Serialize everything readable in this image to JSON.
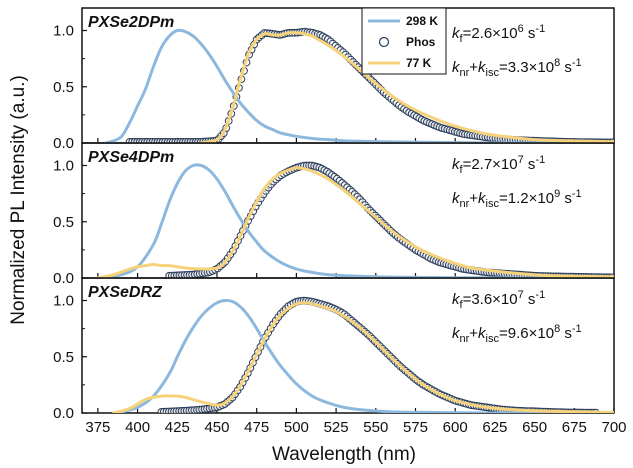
{
  "chart_data": {
    "type": "line",
    "ylabel": "Normalized PL Intensity (a.u.)",
    "xlabel": "Wavelength (nm)",
    "xlim": [
      365,
      700
    ],
    "x_ticks": [
      375,
      400,
      425,
      450,
      475,
      500,
      525,
      550,
      575,
      600,
      625,
      650,
      675,
      700
    ],
    "legend": {
      "placement": "top-center",
      "entries": [
        {
          "key": "rt",
          "label": "298 K",
          "color": "#8db8dd",
          "style": "line"
        },
        {
          "key": "phos",
          "label": "Phos",
          "color": "#2b3d5a",
          "style": "circle"
        },
        {
          "key": "lt",
          "label": "77 K",
          "color": "#f6d37a",
          "style": "line"
        }
      ]
    },
    "panels": [
      {
        "title": "PXSe2DPm",
        "ylim": [
          0,
          1.2
        ],
        "y_ticks": [
          "0.0",
          "0.5",
          "1.0"
        ],
        "annotations": [
          {
            "parts": [
              [
                "k",
                "i"
              ],
              [
                "f",
                "sub"
              ],
              [
                "=2.6×10",
                ""
              ],
              [
                "6",
                "sup"
              ],
              [
                " s",
                ""
              ],
              [
                "-1",
                "sup"
              ]
            ]
          },
          {
            "parts": [
              [
                "k",
                "i"
              ],
              [
                "nr",
                "sub"
              ],
              [
                "+",
                ""
              ],
              [
                "k",
                "i"
              ],
              [
                "isc",
                "sub"
              ],
              [
                "=3.3×10",
                ""
              ],
              [
                "8",
                "sup"
              ],
              [
                " s",
                ""
              ],
              [
                "-1",
                "sup"
              ]
            ]
          }
        ],
        "series": [
          {
            "key": "rt",
            "x": [
              380,
              385,
              390,
              395,
              400,
              405,
              410,
              415,
              420,
              425,
              430,
              435,
              440,
              445,
              450,
              455,
              460,
              465,
              470,
              475,
              480,
              485,
              490,
              500,
              510,
              520,
              530,
              540,
              560,
              580,
              600,
              640,
              690
            ],
            "y": [
              0.0,
              0.02,
              0.06,
              0.18,
              0.33,
              0.48,
              0.68,
              0.85,
              0.95,
              1.0,
              0.99,
              0.95,
              0.88,
              0.79,
              0.68,
              0.56,
              0.45,
              0.35,
              0.27,
              0.2,
              0.15,
              0.12,
              0.09,
              0.06,
              0.04,
              0.03,
              0.02,
              0.015,
              0.01,
              0.006,
              0.004,
              0.0,
              0.0
            ]
          },
          {
            "key": "phos",
            "x": [
              395,
              420,
              440,
              450,
              455,
              460,
              465,
              470,
              475,
              480,
              485,
              490,
              495,
              500,
              505,
              510,
              515,
              520,
              525,
              530,
              535,
              540,
              545,
              550,
              555,
              560,
              565,
              570,
              575,
              580,
              585,
              590,
              595,
              600,
              605,
              610,
              615,
              620,
              625,
              630,
              640,
              650,
              660,
              670,
              680,
              690,
              700
            ],
            "y": [
              0.01,
              0.01,
              0.01,
              0.02,
              0.1,
              0.3,
              0.55,
              0.78,
              0.92,
              0.98,
              0.97,
              0.96,
              0.98,
              0.98,
              0.99,
              0.98,
              0.96,
              0.92,
              0.86,
              0.8,
              0.73,
              0.66,
              0.59,
              0.52,
              0.45,
              0.39,
              0.33,
              0.28,
              0.24,
              0.2,
              0.17,
              0.14,
              0.12,
              0.1,
              0.08,
              0.07,
              0.06,
              0.05,
              0.04,
              0.035,
              0.025,
              0.02,
              0.015,
              0.01,
              0.008,
              0.006,
              0.005
            ]
          },
          {
            "key": "lt",
            "x": [
              440,
              450,
              455,
              460,
              465,
              470,
              475,
              480,
              485,
              490,
              495,
              500,
              505,
              510,
              515,
              520,
              530,
              540,
              550,
              560,
              570,
              580,
              590,
              600,
              610,
              620,
              630,
              650,
              670,
              700
            ],
            "y": [
              0.0,
              0.03,
              0.12,
              0.32,
              0.58,
              0.8,
              0.92,
              0.97,
              0.96,
              0.96,
              0.98,
              0.98,
              0.97,
              0.95,
              0.91,
              0.87,
              0.77,
              0.65,
              0.53,
              0.42,
              0.33,
              0.26,
              0.2,
              0.15,
              0.11,
              0.08,
              0.06,
              0.03,
              0.02,
              0.01
            ]
          }
        ]
      },
      {
        "title": "PXSe4DPm",
        "ylim": [
          0,
          1.2
        ],
        "y_ticks": [
          "0.0",
          "0.5",
          "1.0"
        ],
        "annotations": [
          {
            "parts": [
              [
                "k",
                "i"
              ],
              [
                "f",
                "sub"
              ],
              [
                "=2.7×10",
                ""
              ],
              [
                "7",
                "sup"
              ],
              [
                " s",
                ""
              ],
              [
                "-1",
                "sup"
              ]
            ]
          },
          {
            "parts": [
              [
                "k",
                "i"
              ],
              [
                "nr",
                "sub"
              ],
              [
                "+",
                ""
              ],
              [
                "k",
                "i"
              ],
              [
                "isc",
                "sub"
              ],
              [
                "=1.2×10",
                ""
              ],
              [
                "9",
                "sup"
              ],
              [
                " s",
                ""
              ],
              [
                "-1",
                "sup"
              ]
            ]
          }
        ],
        "series": [
          {
            "key": "rt",
            "x": [
              380,
              390,
              400,
              410,
              415,
              420,
              425,
              430,
              435,
              440,
              445,
              450,
              455,
              460,
              465,
              470,
              475,
              480,
              490,
              500,
              510,
              520,
              540,
              560,
              600,
              650,
              700
            ],
            "y": [
              0.01,
              0.03,
              0.1,
              0.3,
              0.48,
              0.68,
              0.84,
              0.95,
              1.0,
              1.0,
              0.96,
              0.88,
              0.77,
              0.64,
              0.52,
              0.41,
              0.32,
              0.24,
              0.14,
              0.08,
              0.05,
              0.03,
              0.015,
              0.008,
              0.003,
              0.0,
              0.0
            ]
          },
          {
            "key": "phos",
            "x": [
              420,
              435,
              445,
              450,
              455,
              460,
              465,
              470,
              475,
              480,
              485,
              490,
              495,
              500,
              505,
              510,
              515,
              520,
              525,
              530,
              535,
              540,
              545,
              550,
              555,
              560,
              565,
              570,
              575,
              580,
              585,
              590,
              595,
              600,
              605,
              610,
              615,
              620,
              630,
              640,
              650,
              660,
              680,
              700
            ],
            "y": [
              0.02,
              0.03,
              0.05,
              0.08,
              0.14,
              0.24,
              0.38,
              0.52,
              0.65,
              0.76,
              0.85,
              0.91,
              0.95,
              0.98,
              1.0,
              1.0,
              0.98,
              0.94,
              0.89,
              0.83,
              0.77,
              0.7,
              0.62,
              0.55,
              0.48,
              0.41,
              0.35,
              0.3,
              0.25,
              0.21,
              0.17,
              0.14,
              0.12,
              0.1,
              0.08,
              0.07,
              0.06,
              0.05,
              0.04,
              0.03,
              0.02,
              0.015,
              0.01,
              0.005
            ]
          },
          {
            "key": "lt",
            "x": [
              375,
              385,
              395,
              400,
              405,
              410,
              415,
              420,
              425,
              430,
              440,
              450,
              455,
              460,
              465,
              470,
              475,
              480,
              485,
              490,
              495,
              500,
              505,
              510,
              520,
              530,
              540,
              550,
              560,
              570,
              580,
              590,
              600,
              610,
              620,
              640,
              660,
              700
            ],
            "y": [
              0.0,
              0.03,
              0.08,
              0.1,
              0.11,
              0.12,
              0.11,
              0.11,
              0.1,
              0.09,
              0.08,
              0.09,
              0.14,
              0.24,
              0.38,
              0.54,
              0.68,
              0.8,
              0.88,
              0.93,
              0.96,
              0.98,
              0.97,
              0.95,
              0.88,
              0.78,
              0.66,
              0.54,
              0.42,
              0.32,
              0.24,
              0.18,
              0.13,
              0.09,
              0.07,
              0.04,
              0.02,
              0.01
            ]
          }
        ]
      },
      {
        "title": "PXSeDRZ",
        "ylim": [
          0,
          1.2
        ],
        "y_ticks": [
          "0.0",
          "0.5",
          "1.0"
        ],
        "annotations": [
          {
            "parts": [
              [
                "k",
                "i"
              ],
              [
                "f",
                "sub"
              ],
              [
                "=3.6×10",
                ""
              ],
              [
                "7",
                "sup"
              ],
              [
                " s",
                ""
              ],
              [
                "-1",
                "sup"
              ]
            ]
          },
          {
            "parts": [
              [
                "k",
                "i"
              ],
              [
                "nr",
                "sub"
              ],
              [
                "+",
                ""
              ],
              [
                "k",
                "i"
              ],
              [
                "isc",
                "sub"
              ],
              [
                "=9.6×10",
                ""
              ],
              [
                "8",
                "sup"
              ],
              [
                " s",
                ""
              ],
              [
                "-1",
                "sup"
              ]
            ]
          }
        ],
        "series": [
          {
            "key": "rt",
            "x": [
              390,
              400,
              410,
              420,
              425,
              430,
              435,
              440,
              445,
              450,
              455,
              460,
              465,
              470,
              475,
              480,
              485,
              490,
              500,
              510,
              520,
              530,
              540,
              560,
              580,
              620,
              700
            ],
            "y": [
              0.01,
              0.05,
              0.15,
              0.35,
              0.5,
              0.64,
              0.76,
              0.86,
              0.93,
              0.98,
              1.0,
              0.99,
              0.94,
              0.86,
              0.75,
              0.63,
              0.52,
              0.42,
              0.26,
              0.15,
              0.09,
              0.05,
              0.03,
              0.01,
              0.005,
              0.0,
              0.0
            ]
          },
          {
            "key": "phos",
            "x": [
              415,
              430,
              440,
              450,
              455,
              460,
              465,
              470,
              475,
              480,
              485,
              490,
              495,
              500,
              505,
              510,
              515,
              520,
              525,
              530,
              535,
              540,
              545,
              550,
              555,
              560,
              565,
              570,
              575,
              580,
              585,
              590,
              595,
              600,
              605,
              610,
              615,
              620,
              630,
              640,
              650,
              660,
              670,
              690
            ],
            "y": [
              0.01,
              0.02,
              0.03,
              0.05,
              0.08,
              0.14,
              0.24,
              0.37,
              0.52,
              0.66,
              0.78,
              0.88,
              0.95,
              0.99,
              1.0,
              0.99,
              0.97,
              0.95,
              0.92,
              0.88,
              0.82,
              0.76,
              0.7,
              0.63,
              0.56,
              0.49,
              0.42,
              0.36,
              0.3,
              0.25,
              0.21,
              0.17,
              0.14,
              0.11,
              0.09,
              0.07,
              0.06,
              0.05,
              0.03,
              0.02,
              0.015,
              0.01,
              0.005,
              0.003
            ]
          },
          {
            "key": "lt",
            "x": [
              385,
              395,
              405,
              415,
              425,
              430,
              440,
              450,
              455,
              460,
              465,
              470,
              475,
              480,
              485,
              490,
              495,
              500,
              505,
              510,
              515,
              520,
              525,
              530,
              540,
              550,
              560,
              570,
              580,
              590,
              600,
              620,
              650,
              700
            ],
            "y": [
              0.0,
              0.04,
              0.12,
              0.15,
              0.15,
              0.14,
              0.1,
              0.07,
              0.09,
              0.15,
              0.25,
              0.38,
              0.52,
              0.66,
              0.78,
              0.87,
              0.93,
              0.97,
              0.98,
              0.97,
              0.95,
              0.93,
              0.9,
              0.86,
              0.76,
              0.63,
              0.49,
              0.36,
              0.25,
              0.17,
              0.11,
              0.05,
              0.02,
              0.005
            ]
          }
        ]
      }
    ]
  }
}
